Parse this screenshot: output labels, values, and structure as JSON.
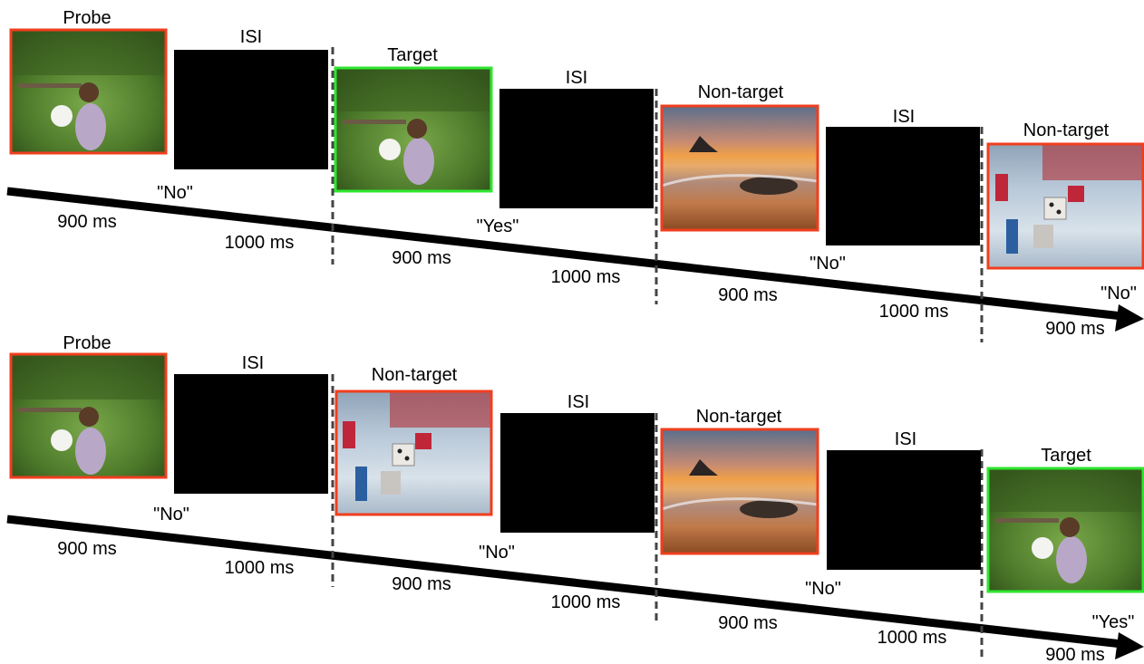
{
  "colors": {
    "probe_border": "#f03e1e",
    "target_border": "#2ee62e",
    "nontarget_border": "#f03e1e",
    "isi_fill": "#000000",
    "arrow": "#000000"
  },
  "images": {
    "garden": "photo: girl with white dog in garden",
    "sunset": "photo: beach at sunset with rocks",
    "dice": "photo: board game with dice and pawns"
  },
  "rows": [
    {
      "stimuli": [
        {
          "kind": "image",
          "label": "Probe",
          "image": "garden",
          "role": "probe"
        },
        {
          "kind": "isi",
          "label": "ISI"
        },
        {
          "kind": "image",
          "label": "Target",
          "image": "garden",
          "role": "target"
        },
        {
          "kind": "isi",
          "label": "ISI"
        },
        {
          "kind": "image",
          "label": "Non-target",
          "image": "sunset",
          "role": "nontarget"
        },
        {
          "kind": "isi",
          "label": "ISI"
        },
        {
          "kind": "image",
          "label": "Non-target",
          "image": "dice",
          "role": "nontarget"
        }
      ],
      "responses": [
        "\"No\"",
        "\"Yes\"",
        "\"No\"",
        "\"No\""
      ],
      "durations": [
        "900 ms",
        "1000 ms",
        "900 ms",
        "1000 ms",
        "900 ms",
        "1000 ms",
        "900 ms"
      ]
    },
    {
      "stimuli": [
        {
          "kind": "image",
          "label": "Probe",
          "image": "garden",
          "role": "probe"
        },
        {
          "kind": "isi",
          "label": "ISI"
        },
        {
          "kind": "image",
          "label": "Non-target",
          "image": "dice",
          "role": "nontarget"
        },
        {
          "kind": "isi",
          "label": "ISI"
        },
        {
          "kind": "image",
          "label": "Non-target",
          "image": "sunset",
          "role": "nontarget"
        },
        {
          "kind": "isi",
          "label": "ISI"
        },
        {
          "kind": "image",
          "label": "Target",
          "image": "garden",
          "role": "target"
        }
      ],
      "responses": [
        "\"No\"",
        "\"No\"",
        "\"No\"",
        "\"Yes\""
      ],
      "durations": [
        "900 ms",
        "1000 ms",
        "900 ms",
        "1000 ms",
        "900 ms",
        "1000 ms",
        "900 ms"
      ]
    }
  ]
}
